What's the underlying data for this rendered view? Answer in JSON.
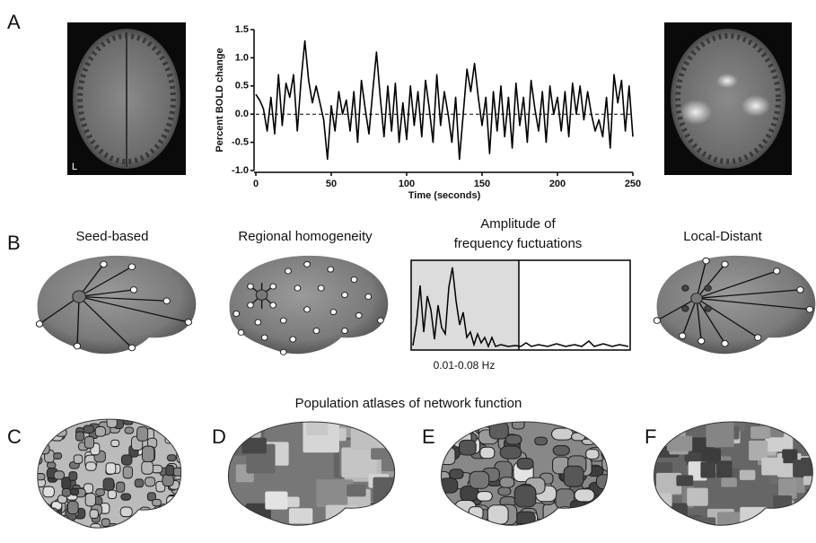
{
  "panel_labels": [
    "A",
    "B",
    "C",
    "D",
    "E",
    "F"
  ],
  "mri_label": "L",
  "methods": [
    {
      "title": "Seed-based"
    },
    {
      "title": "Regional homogeneity"
    },
    {
      "title_lines": [
        "Amplitude of",
        "frequency fuctuations"
      ],
      "band_label": "0.01-0.08 Hz"
    },
    {
      "title": "Local-Distant"
    }
  ],
  "atlas_title": "Population atlases of network function",
  "chart_data": {
    "type": "line",
    "x_label": "Time (seconds)",
    "y_label": "Percent BOLD change",
    "color": "#000000",
    "xlim": [
      0,
      250
    ],
    "ylim": [
      -1,
      1.5
    ],
    "xticks": [
      0,
      50,
      100,
      150,
      200,
      250
    ],
    "yticks": [
      {
        "value": -1,
        "label": "-1.0"
      },
      {
        "value": -0.5,
        "label": "-0.5"
      },
      {
        "value": 0,
        "label": "0.0"
      },
      {
        "value": 0.5,
        "label": "0.5"
      },
      {
        "value": 1,
        "label": "1.0"
      },
      {
        "value": 1.5,
        "label": "1.5"
      }
    ],
    "reference_lines": [
      0
    ],
    "reference_line_style": "dashed",
    "x": [
      0,
      2.5,
      5,
      7.5,
      10,
      12.5,
      15,
      17.5,
      20,
      22.5,
      25,
      27.5,
      30,
      32.5,
      35,
      37.5,
      40,
      42.5,
      45,
      47.5,
      50,
      52.5,
      55,
      57.5,
      60,
      62.5,
      65,
      67.5,
      70,
      72.5,
      75,
      77.5,
      80,
      82.5,
      85,
      87.5,
      90,
      92.5,
      95,
      97.5,
      100,
      102.5,
      105,
      107.5,
      110,
      112.5,
      115,
      117.5,
      120,
      122.5,
      125,
      127.5,
      130,
      132.5,
      135,
      137.5,
      140,
      142.5,
      145,
      147.5,
      150,
      152.5,
      155,
      157.5,
      160,
      162.5,
      165,
      167.5,
      170,
      172.5,
      175,
      177.5,
      180,
      182.5,
      185,
      187.5,
      190,
      192.5,
      195,
      197.5,
      200,
      202.5,
      205,
      207.5,
      210,
      212.5,
      215,
      217.5,
      220,
      222.5,
      225,
      227.5,
      230,
      232.5,
      235,
      237.5,
      240,
      242.5,
      245,
      247.5,
      250
    ],
    "values": [
      0.35,
      0.25,
      0.1,
      -0.3,
      0.3,
      -0.35,
      0.7,
      -0.2,
      0.55,
      0.3,
      0.7,
      -0.3,
      0.6,
      1.3,
      0.6,
      0.2,
      0.5,
      0.2,
      -0.1,
      -0.8,
      0.15,
      -0.3,
      0.4,
      0.0,
      0.25,
      -0.3,
      0.4,
      -0.5,
      0.6,
      0.1,
      -0.35,
      0.4,
      1.1,
      0.3,
      -0.4,
      0.5,
      -0.3,
      0.55,
      -0.5,
      0.2,
      -0.45,
      0.5,
      -0.2,
      0.4,
      -0.4,
      0.6,
      0.1,
      -0.5,
      0.7,
      -0.2,
      0.4,
      0.0,
      -0.5,
      0.3,
      -0.8,
      0.0,
      0.8,
      0.4,
      0.9,
      0.3,
      -0.2,
      0.3,
      -0.7,
      0.4,
      -0.3,
      0.5,
      -0.4,
      0.3,
      -0.6,
      0.55,
      -0.2,
      0.3,
      -0.5,
      0.6,
      0.1,
      -0.3,
      0.4,
      -0.5,
      0.5,
      0.0,
      0.3,
      -0.3,
      0.4,
      -0.4,
      0.55,
      0.0,
      0.5,
      -0.1,
      0.4,
      0.0,
      -0.3,
      -0.1,
      -0.4,
      0.3,
      -0.6,
      0.7,
      0.2,
      0.6,
      -0.3,
      0.5,
      -0.4
    ]
  }
}
